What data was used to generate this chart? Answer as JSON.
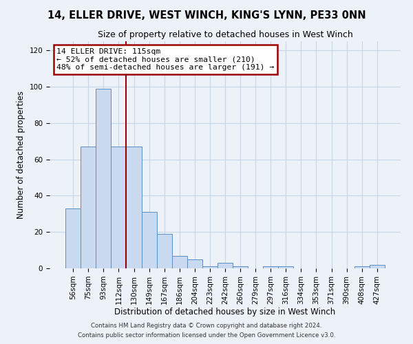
{
  "title": "14, ELLER DRIVE, WEST WINCH, KING'S LYNN, PE33 0NN",
  "subtitle": "Size of property relative to detached houses in West Winch",
  "xlabel": "Distribution of detached houses by size in West Winch",
  "ylabel": "Number of detached properties",
  "bar_color": "#c9d9ef",
  "bar_edge_color": "#5b8ec4",
  "categories": [
    "56sqm",
    "75sqm",
    "93sqm",
    "112sqm",
    "130sqm",
    "149sqm",
    "167sqm",
    "186sqm",
    "204sqm",
    "223sqm",
    "242sqm",
    "260sqm",
    "279sqm",
    "297sqm",
    "316sqm",
    "334sqm",
    "353sqm",
    "371sqm",
    "390sqm",
    "408sqm",
    "427sqm"
  ],
  "values": [
    33,
    67,
    99,
    67,
    67,
    31,
    19,
    7,
    5,
    1,
    3,
    1,
    0,
    1,
    1,
    0,
    0,
    0,
    0,
    1,
    2
  ],
  "vline_x": 3.5,
  "vline_color": "#9b0000",
  "annotation_line1": "14 ELLER DRIVE: 115sqm",
  "annotation_line2": "← 52% of detached houses are smaller (210)",
  "annotation_line3": "48% of semi-detached houses are larger (191) →",
  "annotation_box_edge": "#9b0000",
  "ylim": [
    0,
    125
  ],
  "yticks": [
    0,
    20,
    40,
    60,
    80,
    100,
    120
  ],
  "grid_color": "#c8d4e8",
  "footer1": "Contains HM Land Registry data © Crown copyright and database right 2024.",
  "footer2": "Contains public sector information licensed under the Open Government Licence v3.0.",
  "bg_color": "#edf2f9",
  "title_fontsize": 10.5,
  "subtitle_fontsize": 9,
  "tick_fontsize": 7.5,
  "label_fontsize": 8.5,
  "footer_fontsize": 6.2
}
